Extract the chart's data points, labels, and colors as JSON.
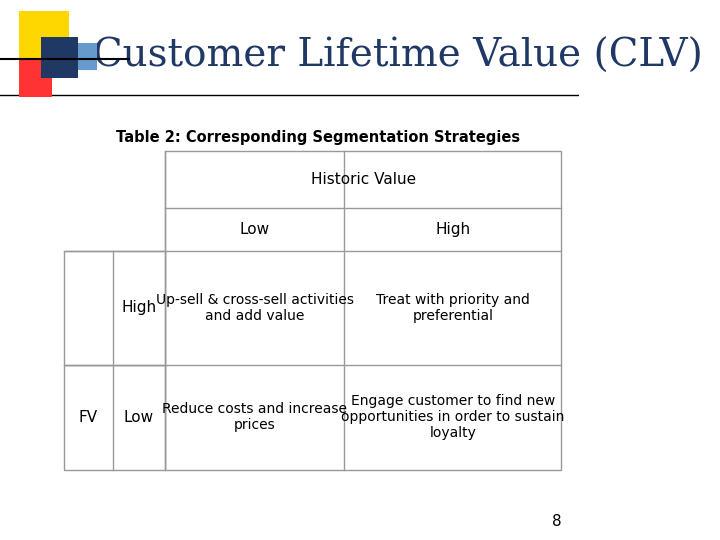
{
  "title": "Customer Lifetime Value (CLV)",
  "table_caption": "Table 2: Corresponding Segmentation Strategies",
  "background_color": "#ffffff",
  "title_color": "#1F3864",
  "title_fontsize": 28,
  "page_number": "8",
  "header_row1": "Historic Value",
  "header_row2_col1": "Low",
  "header_row2_col2": "High",
  "fv_label": "FV",
  "row1_label": "High",
  "row2_label": "Low",
  "cell_r1c1": "Up-sell & cross-sell activities\nand add value",
  "cell_r1c2": "Treat with priority and\npreferential",
  "cell_r2c1": "Reduce costs and increase\nprices",
  "cell_r2c2": "Engage customer to find new\nopportunities in order to sustain\nloyalty",
  "logo_colors": {
    "yellow": "#FFD700",
    "red": "#FF3333",
    "blue_dark": "#1F3864",
    "blue_light": "#6699CC"
  },
  "table_border_color": "#999999",
  "cell_fontsize": 10,
  "header_fontsize": 11,
  "label_fontsize": 11
}
